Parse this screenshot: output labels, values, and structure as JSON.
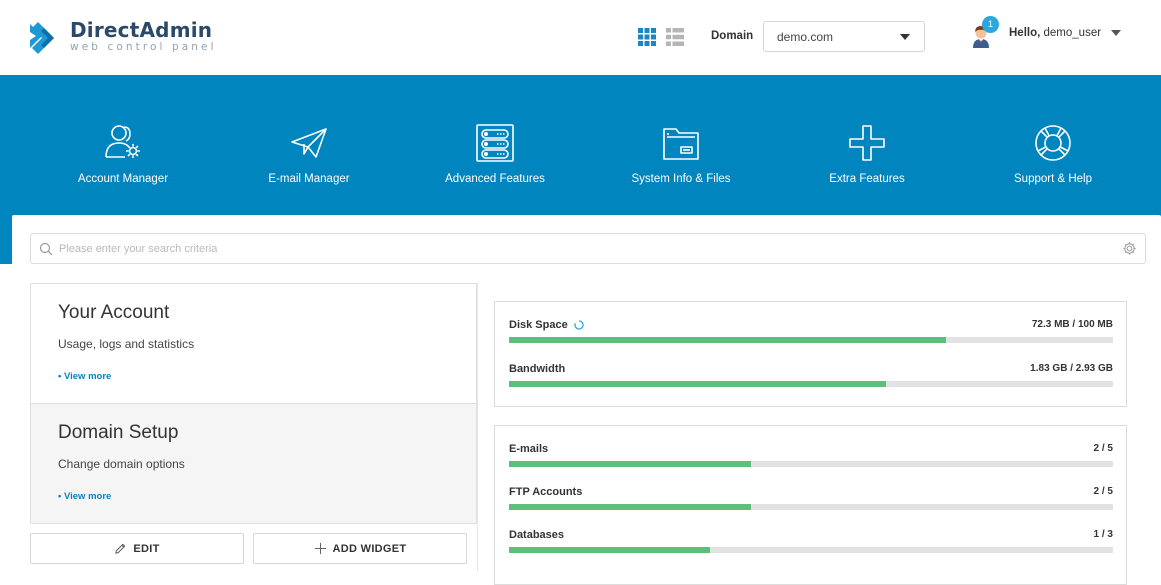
{
  "header": {
    "logo_title": "DirectAdmin",
    "logo_subtitle": "web control panel",
    "domain_label": "Domain",
    "domain_value": "demo.com",
    "notification_count": "1",
    "greeting": "Hello,",
    "username": "demo_user",
    "brand_color": "#0085bf"
  },
  "nav": {
    "items": [
      {
        "label": "Account Manager",
        "icon": "account-manager-icon"
      },
      {
        "label": "E-mail Manager",
        "icon": "paper-plane-icon"
      },
      {
        "label": "Advanced Features",
        "icon": "server-icon"
      },
      {
        "label": "System Info & Files",
        "icon": "folder-icon"
      },
      {
        "label": "Extra Features",
        "icon": "plus-icon"
      },
      {
        "label": "Support & Help",
        "icon": "lifebuoy-icon"
      }
    ]
  },
  "search": {
    "placeholder": "Please enter your search criteria"
  },
  "cards": [
    {
      "title": "Your Account",
      "description": "Usage, logs and statistics",
      "link": "• View more"
    },
    {
      "title": "Domain Setup",
      "description": "Change domain options",
      "link": "• View more"
    }
  ],
  "buttons": {
    "edit": "EDIT",
    "add_widget": "ADD WIDGET"
  },
  "stats": {
    "usage": [
      {
        "name": "Disk Space",
        "value": "72.3 MB / 100 MB",
        "fraction": 0.723
      },
      {
        "name": "Bandwidth",
        "value": "1.83 GB / 2.93 GB",
        "fraction": 0.624
      }
    ],
    "counts": [
      {
        "name": "E-mails",
        "value": "2 / 5",
        "fraction": 0.4
      },
      {
        "name": "FTP Accounts",
        "value": "2 / 5",
        "fraction": 0.4
      },
      {
        "name": "Databases",
        "value": "1 / 3",
        "fraction": 0.333
      }
    ],
    "bar_color": "#5cbf7a"
  }
}
